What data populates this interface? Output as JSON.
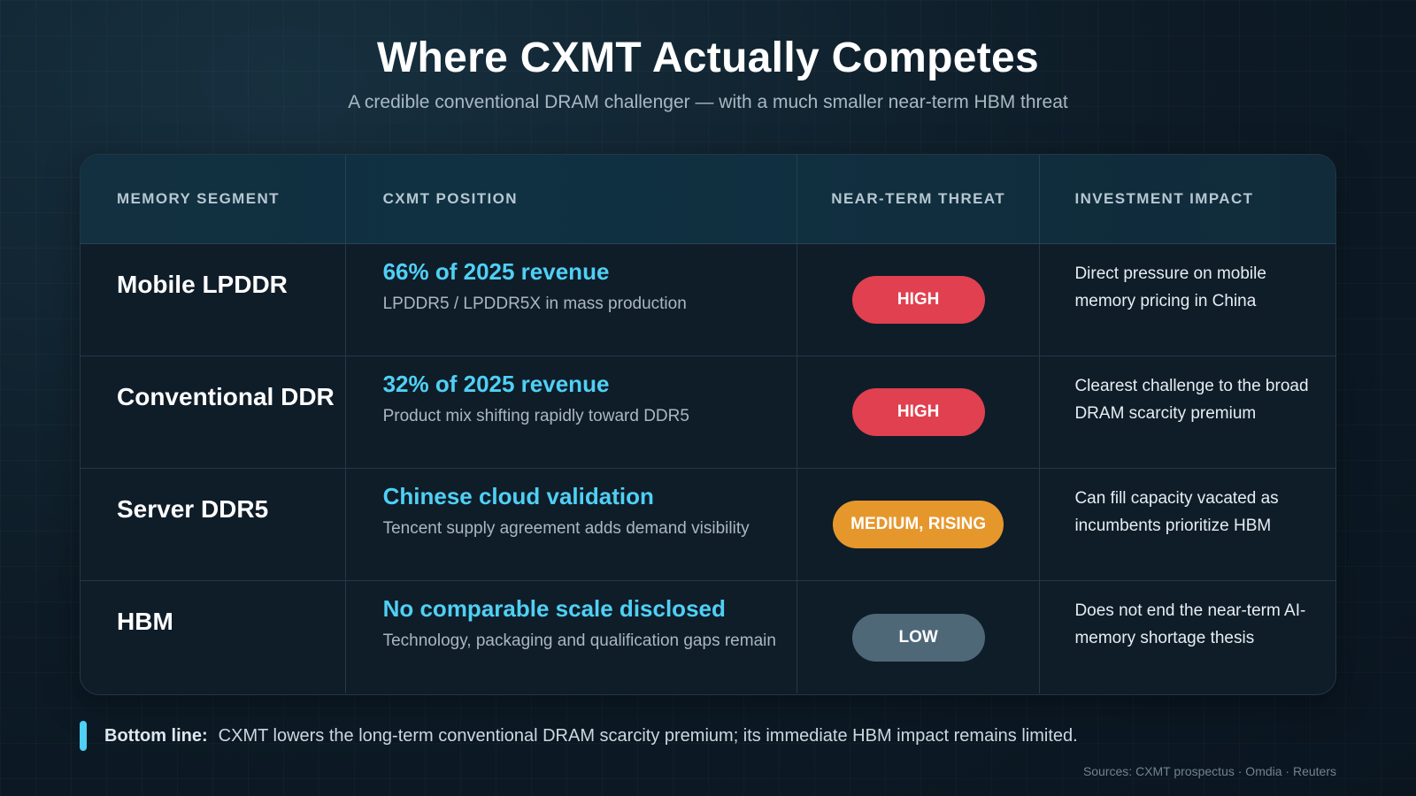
{
  "title": "Where CXMT Actually Competes",
  "subtitle": "A credible conventional DRAM challenger — with a much smaller near-term HBM threat",
  "table": {
    "headers": [
      "MEMORY SEGMENT",
      "CXMT POSITION",
      "NEAR-TERM THREAT",
      "INVESTMENT IMPACT"
    ],
    "rows": [
      {
        "segment": "Mobile LPDDR",
        "position": "66% of 2025 revenue",
        "detail": "LPDDR5 / LPDDR5X in mass production",
        "threat": "HIGH",
        "threat_color": "#e0404f",
        "impact": "Direct pressure on mobile memory pricing in China"
      },
      {
        "segment": "Conventional DDR",
        "position": "32% of 2025 revenue",
        "detail": "Product mix shifting rapidly toward DDR5",
        "threat": "HIGH",
        "threat_color": "#e0404f",
        "impact": "Clearest challenge to the broad DRAM scarcity premium"
      },
      {
        "segment": "Server DDR5",
        "position": "Chinese cloud validation",
        "detail": "Tencent supply agreement adds demand visibility",
        "threat": "MEDIUM, RISING",
        "threat_color": "#e6972c",
        "impact": "Can fill capacity vacated as incumbents prioritize HBM"
      },
      {
        "segment": "HBM",
        "position": "No comparable scale disclosed",
        "detail": "Technology, packaging and qualification gaps remain",
        "threat": "LOW",
        "threat_color": "#4f6878",
        "impact": "Does not end the near-term AI-memory shortage thesis"
      }
    ]
  },
  "bottom_line": {
    "label": "Bottom line:",
    "text": "CXMT lowers the long-term conventional DRAM scarcity premium; its immediate HBM impact remains limited."
  },
  "sources": "Sources: CXMT prospectus · Omdia · Reuters",
  "colors": {
    "accent": "#4fd0f5",
    "high": "#e0404f",
    "medium": "#e6972c",
    "low": "#4f6878"
  }
}
